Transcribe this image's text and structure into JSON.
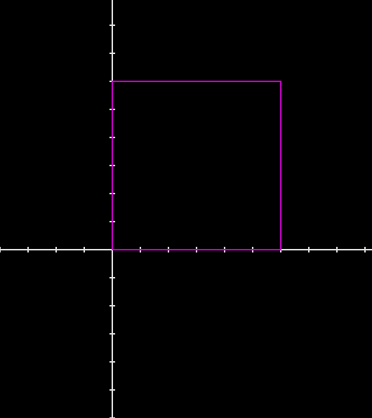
{
  "colors": {
    "background": "#000000",
    "axis": "#e6e6e6",
    "shape": "#cc00cc"
  },
  "chart_data": {
    "type": "scatter",
    "title": "",
    "xlabel": "",
    "ylabel": "",
    "xlim": [
      -4,
      9.25
    ],
    "ylim": [
      -6,
      8.9
    ],
    "tick_step": 1,
    "grid": false,
    "legend": "none",
    "shapes": [
      {
        "kind": "rectangle",
        "color": "#cc00cc",
        "vertices": [
          [
            0,
            0
          ],
          [
            6,
            0
          ],
          [
            6,
            6
          ],
          [
            0,
            6
          ],
          [
            0,
            0
          ]
        ]
      }
    ]
  }
}
